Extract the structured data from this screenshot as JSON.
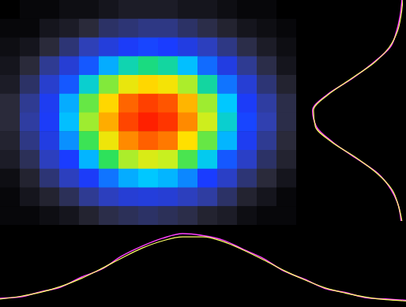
{
  "chart_data": [
    {
      "type": "heatmap",
      "tick_labels": false,
      "cells": [
        [
          0,
          1,
          1,
          2,
          2,
          3,
          4,
          4,
          4,
          3,
          3,
          2,
          1,
          1,
          0
        ],
        [
          1,
          1,
          3,
          4,
          6,
          9,
          10,
          11,
          11,
          9,
          7,
          5,
          3,
          2,
          1
        ],
        [
          2,
          3,
          6,
          10,
          15,
          20,
          24,
          26,
          25,
          21,
          16,
          11,
          7,
          4,
          2
        ],
        [
          3,
          6,
          12,
          19,
          28,
          37,
          45,
          48,
          46,
          39,
          30,
          21,
          12,
          7,
          3
        ],
        [
          4,
          9,
          18,
          28,
          43,
          57,
          68,
          73,
          70,
          60,
          46,
          31,
          19,
          10,
          5
        ],
        [
          6,
          12,
          23,
          37,
          55,
          73,
          87,
          94,
          90,
          77,
          59,
          40,
          24,
          13,
          7
        ],
        [
          6,
          13,
          24,
          39,
          59,
          78,
          93,
          100,
          96,
          82,
          63,
          43,
          26,
          14,
          7
        ],
        [
          5,
          11,
          21,
          34,
          52,
          69,
          82,
          88,
          84,
          72,
          55,
          38,
          23,
          12,
          6
        ],
        [
          4,
          8,
          16,
          25,
          38,
          51,
          60,
          65,
          62,
          53,
          41,
          28,
          17,
          9,
          5
        ],
        [
          2,
          5,
          10,
          16,
          24,
          31,
          37,
          40,
          38,
          33,
          25,
          17,
          10,
          6,
          3
        ],
        [
          1,
          3,
          5,
          8,
          12,
          16,
          19,
          20,
          19,
          16,
          13,
          9,
          5,
          3,
          1
        ],
        [
          1,
          1,
          2,
          3,
          5,
          7,
          8,
          9,
          8,
          7,
          5,
          4,
          2,
          1,
          1
        ]
      ]
    },
    {
      "type": "line",
      "tick_labels": false,
      "xlim": [
        0,
        500
      ],
      "ylim": [
        0,
        110
      ],
      "x": [
        0,
        25,
        50,
        75,
        100,
        125,
        150,
        175,
        200,
        225,
        250,
        275,
        300,
        325,
        350,
        375,
        400,
        425,
        450,
        475,
        500
      ],
      "series": [
        {
          "color": "#ff40ff",
          "values": [
            6,
            8,
            16,
            23,
            38,
            50,
            70,
            85,
            97,
            104,
            101,
            94,
            80,
            66,
            47,
            35,
            21,
            15,
            7,
            5,
            3
          ]
        },
        {
          "color": "#ffff66",
          "values": [
            5,
            9,
            15,
            24,
            36,
            51,
            67,
            82,
            93,
            99,
            99,
            92,
            79,
            64,
            48,
            34,
            22,
            14,
            8,
            4,
            2
          ]
        }
      ]
    },
    {
      "type": "line",
      "tick_labels": false,
      "xlim": [
        0,
        285
      ],
      "ylim": [
        0,
        110
      ],
      "x": [
        0,
        20,
        40,
        60,
        80,
        100,
        120,
        140,
        160,
        180,
        200,
        220,
        240,
        260,
        280
      ],
      "series": [
        {
          "color": "#ff40ff",
          "values": [
            1,
            3,
            7,
            14,
            33,
            56,
            83,
            99,
            95,
            77,
            52,
            27,
            13,
            5,
            2
          ]
        },
        {
          "color": "#ffff66",
          "values": [
            0,
            2,
            6,
            15,
            32,
            57,
            82,
            98,
            96,
            78,
            51,
            28,
            12,
            5,
            1
          ]
        }
      ]
    }
  ]
}
